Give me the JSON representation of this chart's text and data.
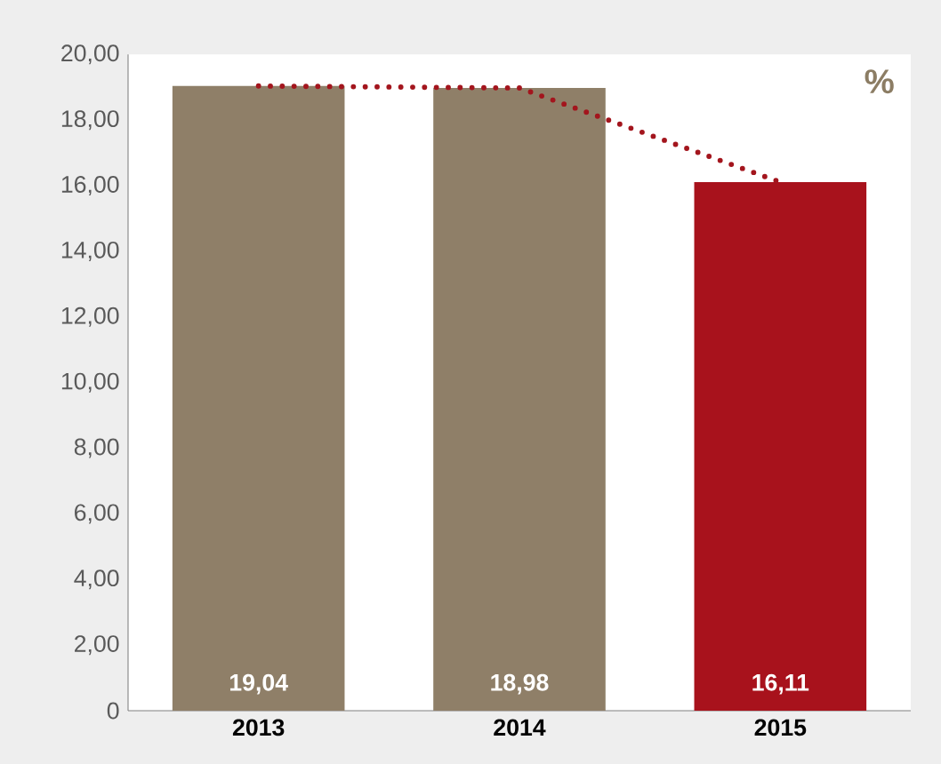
{
  "chart_data": {
    "type": "bar",
    "ylabel": "%",
    "categories": [
      "2013",
      "2014",
      "2015"
    ],
    "series": [
      {
        "colors": [
          "#8f7f68",
          "#8f7f68",
          "#a8121c"
        ],
        "values": [
          19.04,
          18.98,
          16.11
        ],
        "value_labels": [
          "19,04",
          "18,98",
          "16,11"
        ]
      },
      {
        "type": "line",
        "color": "#a3151d",
        "line_style": "dotted",
        "values": [
          19.04,
          18.98,
          16.11
        ]
      }
    ],
    "ylim": [
      0,
      20
    ],
    "yticks": [
      0,
      {
        "value": 2,
        "label": "2,00"
      },
      {
        "value": 4,
        "label": "4,00"
      },
      {
        "value": 6,
        "label": "6,00"
      },
      {
        "value": 8,
        "label": "8,00"
      },
      {
        "value": 10,
        "label": "10,00"
      },
      {
        "value": 12,
        "label": "12,00"
      },
      {
        "value": 14,
        "label": "14,00"
      },
      {
        "value": 16,
        "label": "16,00"
      },
      {
        "value": 18,
        "label": "18,00"
      },
      {
        "value": 20,
        "label": "20,00"
      }
    ]
  }
}
